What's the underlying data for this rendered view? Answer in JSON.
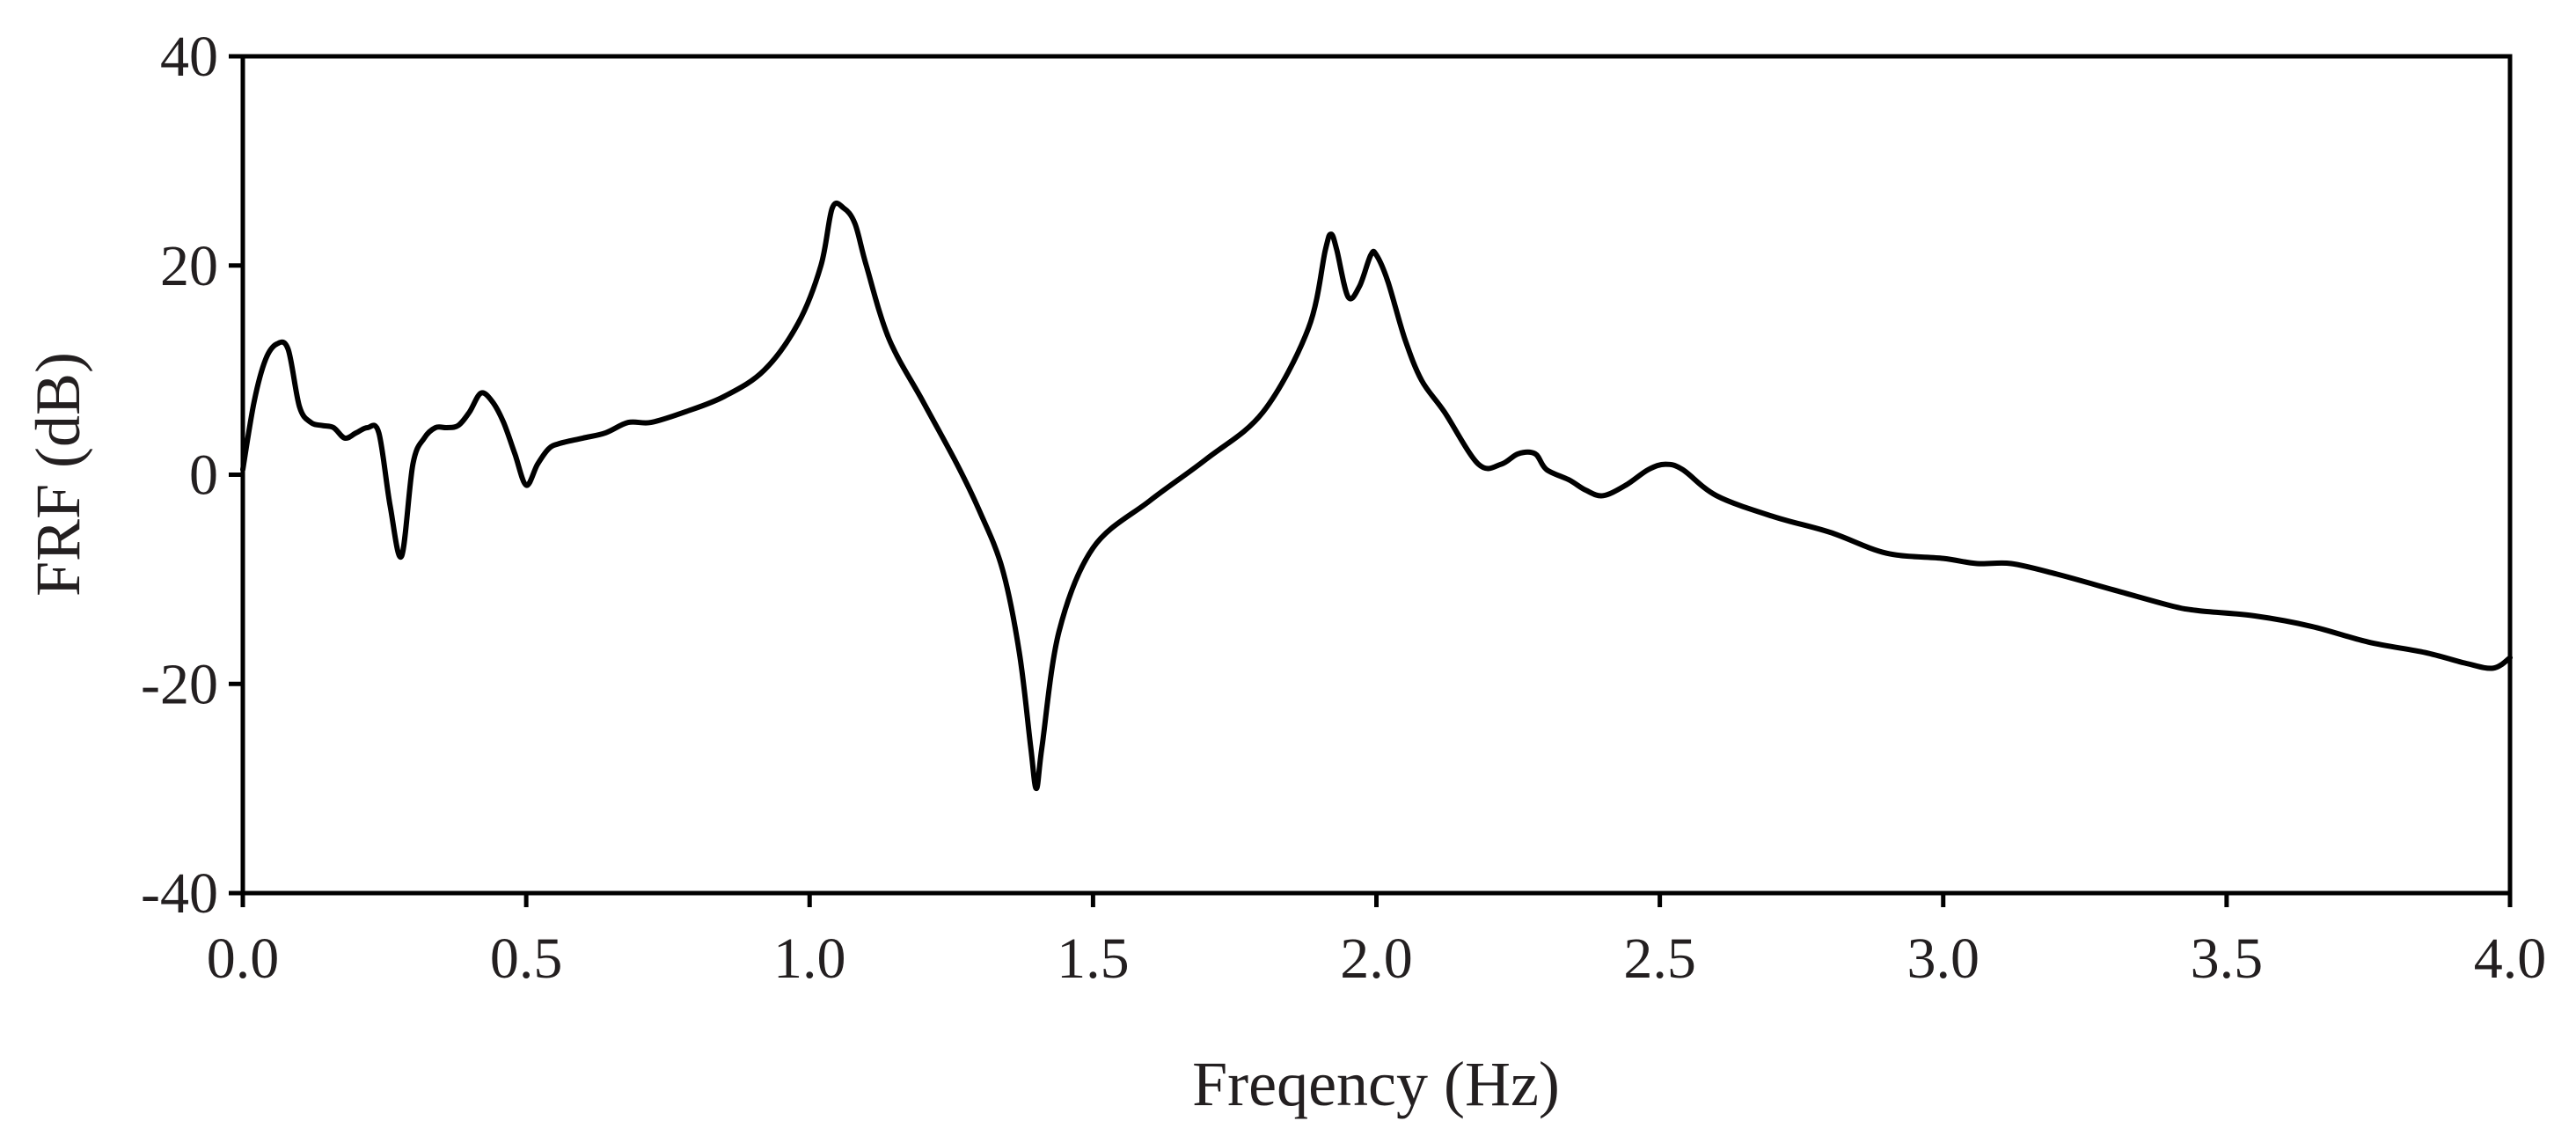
{
  "chart_data": {
    "type": "line",
    "title": "",
    "xlabel": "Freqency (Hz)",
    "ylabel": "FRF (dB)",
    "xlim": [
      0,
      4
    ],
    "ylim": [
      -40,
      40
    ],
    "x_ticks": [
      "0.0",
      "0.5",
      "1.0",
      "1.5",
      "2.0",
      "2.5",
      "3.0",
      "3.5",
      "4.0"
    ],
    "y_ticks": [
      "40",
      "20",
      "0",
      "-20",
      "-40"
    ],
    "grid": false,
    "legend": "none",
    "line_color": "#000000",
    "series": [
      {
        "x": [
          0.0,
          0.02,
          0.04,
          0.06,
          0.08,
          0.1,
          0.12,
          0.14,
          0.16,
          0.18,
          0.2,
          0.22,
          0.24,
          0.26,
          0.28,
          0.3,
          0.32,
          0.34,
          0.36,
          0.38,
          0.4,
          0.42,
          0.44,
          0.46,
          0.48,
          0.5,
          0.52,
          0.54,
          0.56,
          0.6,
          0.64,
          0.68,
          0.72,
          0.78,
          0.85,
          0.92,
          0.98,
          1.02,
          1.04,
          1.06,
          1.08,
          1.1,
          1.14,
          1.2,
          1.26,
          1.3,
          1.34,
          1.37,
          1.39,
          1.4,
          1.41,
          1.44,
          1.5,
          1.6,
          1.7,
          1.8,
          1.88,
          1.91,
          1.92,
          1.93,
          1.95,
          1.97,
          1.99,
          2.0,
          2.02,
          2.05,
          2.08,
          2.12,
          2.18,
          2.22,
          2.25,
          2.28,
          2.3,
          2.34,
          2.37,
          2.4,
          2.44,
          2.48,
          2.51,
          2.54,
          2.6,
          2.7,
          2.8,
          2.9,
          3.0,
          3.06,
          3.12,
          3.2,
          3.3,
          3.4,
          3.45,
          3.55,
          3.65,
          3.75,
          3.85,
          3.92,
          3.97,
          4.0
        ],
        "y": [
          0.5,
          7.0,
          11.0,
          12.5,
          12.0,
          6.5,
          5.0,
          4.7,
          4.5,
          3.5,
          4.0,
          4.5,
          4.0,
          -3.0,
          -7.8,
          1.0,
          3.5,
          4.5,
          4.5,
          4.7,
          6.0,
          7.8,
          7.0,
          5.0,
          2.0,
          -1.0,
          1.0,
          2.5,
          3.0,
          3.5,
          4.0,
          5.0,
          5.0,
          6.0,
          7.5,
          10.0,
          14.5,
          20.0,
          25.5,
          25.5,
          24.0,
          20.0,
          13.0,
          7.0,
          1.0,
          -3.5,
          -9.0,
          -17.0,
          -26.0,
          -30.0,
          -26.0,
          -15.0,
          -7.0,
          -2.5,
          1.5,
          6.0,
          14.0,
          21.5,
          23.0,
          21.5,
          17.0,
          18.0,
          21.0,
          21.0,
          18.5,
          13.0,
          9.0,
          6.0,
          1.0,
          1.0,
          2.0,
          2.0,
          0.5,
          -0.5,
          -1.5,
          -2.0,
          -1.0,
          0.5,
          1.0,
          0.5,
          -2.0,
          -4.0,
          -5.5,
          -7.5,
          -8.0,
          -8.5,
          -8.5,
          -9.5,
          -11.0,
          -12.5,
          -13.0,
          -13.5,
          -14.5,
          -16.0,
          -17.0,
          -18.0,
          -18.5,
          -17.5
        ]
      }
    ]
  }
}
